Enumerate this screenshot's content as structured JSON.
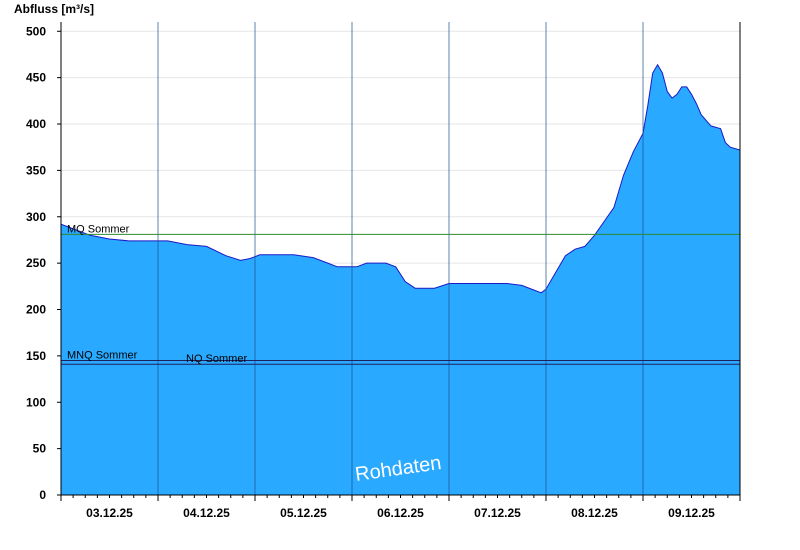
{
  "chart_data": {
    "type": "area",
    "ylabel": "Abfluss [m³/s]",
    "ylim": [
      0,
      510
    ],
    "yticks": [
      0,
      50,
      100,
      150,
      200,
      250,
      300,
      350,
      400,
      450,
      500
    ],
    "x_days": [
      "03.12.25",
      "04.12.25",
      "05.12.25",
      "06.12.25",
      "07.12.25",
      "08.12.25",
      "09.12.25"
    ],
    "xlim": [
      0,
      7
    ],
    "grid": "horizontal",
    "colors": {
      "fill": "#29a9ff",
      "stroke": "#1a1ac8",
      "mq_line": "#2e8b2e",
      "nq_line": "#202060"
    },
    "series": [
      {
        "x": [
          0,
          0.1,
          0.2,
          0.3,
          0.5,
          0.7,
          0.9,
          1.1,
          1.3,
          1.5,
          1.7,
          1.85,
          1.95,
          2.05,
          2.2,
          2.4,
          2.6,
          2.75,
          2.85,
          2.95,
          3.05,
          3.15,
          3.25,
          3.35,
          3.45,
          3.55,
          3.65,
          3.75,
          3.85,
          4.0,
          4.2,
          4.4,
          4.6,
          4.75,
          4.85,
          4.95,
          5.0,
          5.1,
          5.2,
          5.3,
          5.4,
          5.5,
          5.6,
          5.7,
          5.8,
          5.9,
          6.0,
          6.05,
          6.1,
          6.15,
          6.2,
          6.25,
          6.3,
          6.35,
          6.4,
          6.45,
          6.5,
          6.55,
          6.6,
          6.7,
          6.8,
          6.85,
          6.9,
          7.0
        ],
        "values": [
          292,
          288,
          284,
          280,
          276,
          274,
          274,
          274,
          270,
          268,
          258,
          253,
          255,
          259,
          259,
          259,
          256,
          250,
          246,
          246,
          246,
          250,
          250,
          250,
          246,
          230,
          223,
          223,
          223,
          228,
          228,
          228,
          228,
          226,
          222,
          218,
          222,
          240,
          258,
          265,
          268,
          280,
          295,
          310,
          345,
          370,
          390,
          420,
          455,
          464,
          455,
          435,
          428,
          432,
          440,
          440,
          432,
          422,
          410,
          398,
          395,
          380,
          375,
          372
        ]
      }
    ],
    "reference_lines": [
      {
        "label": "MQ Sommer",
        "value": 281
      },
      {
        "label": "MNQ Sommer",
        "value": 145
      },
      {
        "label": "NQ Sommer",
        "value": 141
      }
    ],
    "annotation": "Rohdaten"
  }
}
